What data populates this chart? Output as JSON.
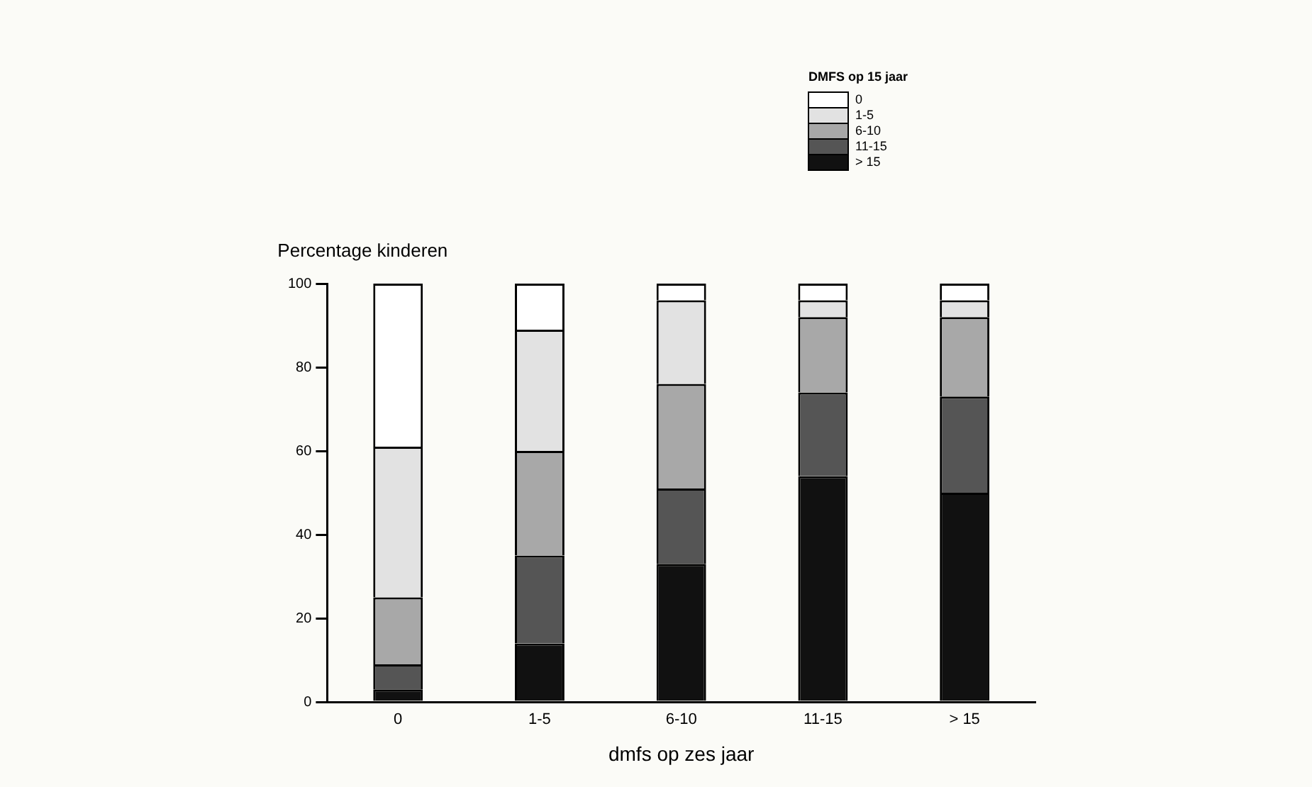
{
  "chart_data": {
    "type": "bar",
    "stacked": true,
    "xlabel": "dmfs op zes jaar",
    "ylabel": "Percentage kinderen",
    "legend_title": "DMFS op 15 jaar",
    "legend": "top right",
    "grid": false,
    "categories": [
      "0",
      "1-5",
      "6-10",
      "11-15",
      "> 15"
    ],
    "ylim": [
      0,
      100
    ],
    "yticks": [
      0,
      20,
      40,
      60,
      80,
      100
    ],
    "series": [
      {
        "name": "> 15",
        "color": "#111111",
        "values": [
          3,
          14,
          33,
          54,
          50
        ]
      },
      {
        "name": "11-15",
        "color": "#555555",
        "values": [
          6,
          21,
          18,
          20,
          23
        ]
      },
      {
        "name": "6-10",
        "color": "#a8a8a8",
        "values": [
          16,
          25,
          25,
          18,
          19
        ]
      },
      {
        "name": "1-5",
        "color": "#e2e2e2",
        "values": [
          36,
          29,
          20,
          4,
          4
        ]
      },
      {
        "name": "0",
        "color": "#ffffff",
        "values": [
          39,
          11,
          4,
          4,
          4
        ]
      }
    ]
  }
}
